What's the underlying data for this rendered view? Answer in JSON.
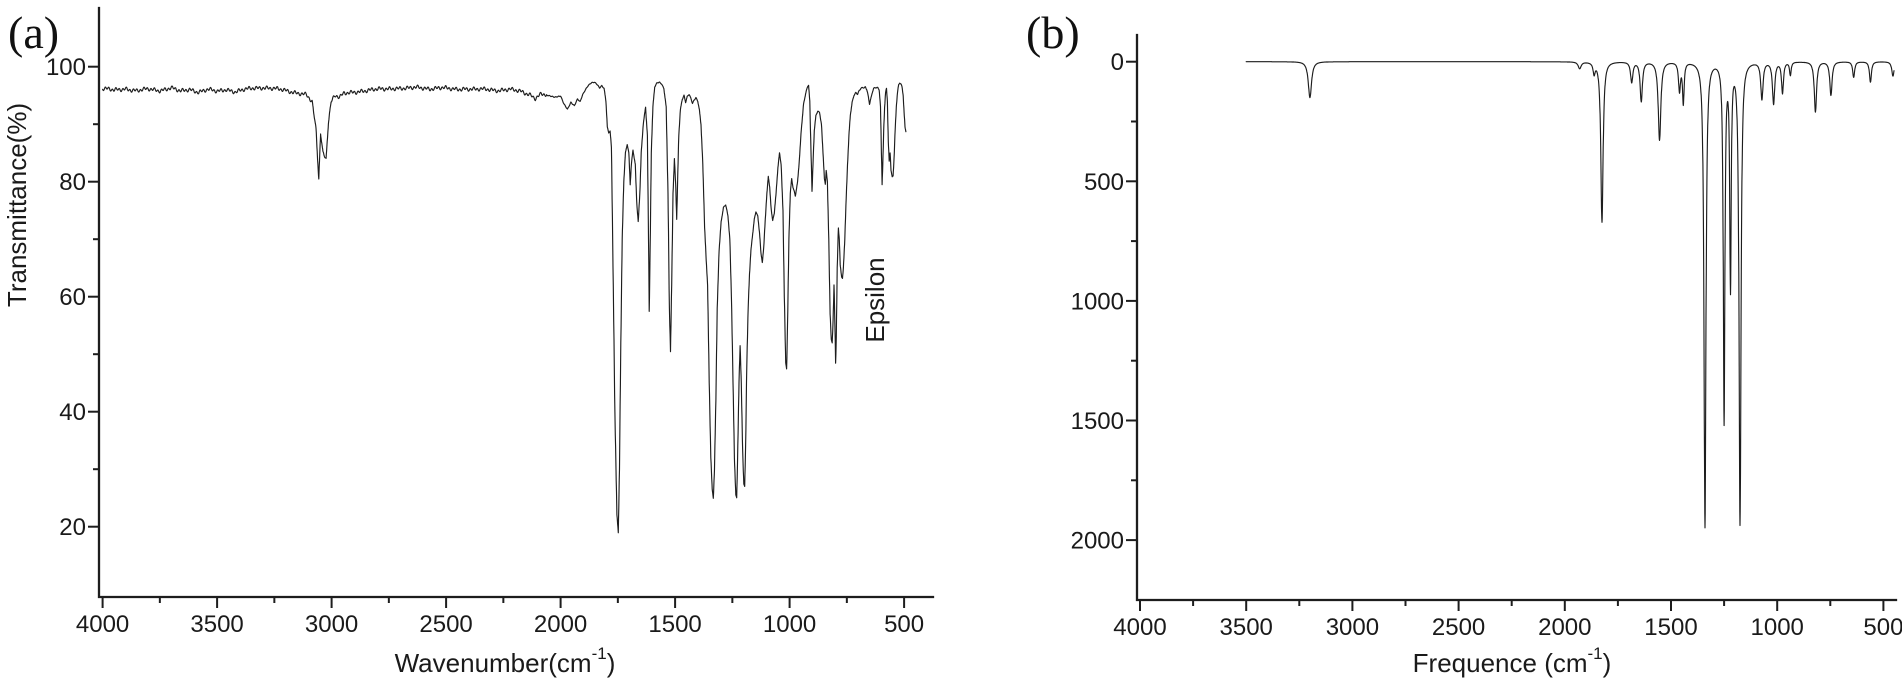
{
  "figure": {
    "description_visible_text_only": true,
    "line_color": "#1d1d1d",
    "background_color": "#ffffff"
  },
  "chart_data": [
    {
      "type": "line",
      "tag": "(a)",
      "xlabel": "Wavenumber(cm⁻¹)",
      "xlabel_parts": {
        "pre": "Wavenumber(cm",
        "sup": "-1",
        "post": ")"
      },
      "ylabel": "Transmittance(%)",
      "x_ticks": [
        4000,
        3500,
        3000,
        2500,
        2000,
        1500,
        1000,
        500
      ],
      "x_minor_ticks": [
        3750,
        3250,
        2750,
        2250,
        1750,
        1250,
        750
      ],
      "y_ticks": [
        100,
        80,
        60,
        40,
        20
      ],
      "y_minor_ticks": [
        90,
        70,
        50,
        30
      ],
      "x_axis_reversed": true,
      "xlim": [
        4000,
        370
      ],
      "ylim": [
        8,
        110
      ],
      "legend": "none",
      "grid": false,
      "curve_points_format": "[wavenumber_cm-1, transmittance_pct]",
      "curve_points": [
        [
          4000,
          96.2
        ],
        [
          3950,
          95.9
        ],
        [
          3900,
          96.2
        ],
        [
          3850,
          95.8
        ],
        [
          3800,
          96.1
        ],
        [
          3750,
          95.9
        ],
        [
          3700,
          96.3
        ],
        [
          3660,
          95.7
        ],
        [
          3620,
          96.1
        ],
        [
          3580,
          95.6
        ],
        [
          3540,
          96.0
        ],
        [
          3500,
          95.7
        ],
        [
          3460,
          96.1
        ],
        [
          3420,
          95.6
        ],
        [
          3380,
          96.0
        ],
        [
          3340,
          96.3
        ],
        [
          3300,
          96.4
        ],
        [
          3260,
          96.2
        ],
        [
          3220,
          96.0
        ],
        [
          3180,
          95.7
        ],
        [
          3140,
          95.4
        ],
        [
          3110,
          95.1
        ],
        [
          3085,
          93.8
        ],
        [
          3068,
          89.0
        ],
        [
          3056,
          80.5
        ],
        [
          3048,
          88.5
        ],
        [
          3038,
          85.0
        ],
        [
          3024,
          84.0
        ],
        [
          3014,
          90.5
        ],
        [
          3002,
          94.0
        ],
        [
          2985,
          95.0
        ],
        [
          2965,
          94.7
        ],
        [
          2945,
          95.3
        ],
        [
          2910,
          95.5
        ],
        [
          2870,
          95.8
        ],
        [
          2820,
          96.0
        ],
        [
          2770,
          96.1
        ],
        [
          2720,
          96.3
        ],
        [
          2670,
          96.2
        ],
        [
          2620,
          96.4
        ],
        [
          2570,
          96.2
        ],
        [
          2520,
          96.3
        ],
        [
          2470,
          96.1
        ],
        [
          2420,
          96.2
        ],
        [
          2370,
          96.0
        ],
        [
          2320,
          96.1
        ],
        [
          2270,
          95.9
        ],
        [
          2220,
          96.0
        ],
        [
          2170,
          95.7
        ],
        [
          2130,
          95.1
        ],
        [
          2110,
          94.5
        ],
        [
          2085,
          95.2
        ],
        [
          2055,
          95.0
        ],
        [
          2025,
          94.7
        ],
        [
          2000,
          94.9
        ],
        [
          1985,
          93.5
        ],
        [
          1970,
          92.6
        ],
        [
          1955,
          93.8
        ],
        [
          1940,
          93.2
        ],
        [
          1926,
          94.4
        ],
        [
          1915,
          93.9
        ],
        [
          1904,
          95.1
        ],
        [
          1893,
          95.9
        ],
        [
          1880,
          96.7
        ],
        [
          1866,
          97.2
        ],
        [
          1852,
          97.3
        ],
        [
          1840,
          96.9
        ],
        [
          1830,
          96.3
        ],
        [
          1820,
          96.7
        ],
        [
          1810,
          96.2
        ],
        [
          1802,
          94.0
        ],
        [
          1796,
          89.5
        ],
        [
          1790,
          88.5
        ],
        [
          1784,
          88.8
        ],
        [
          1778,
          86.0
        ],
        [
          1771,
          65.0
        ],
        [
          1763,
          40.0
        ],
        [
          1754,
          22.0
        ],
        [
          1748,
          19.0
        ],
        [
          1743,
          30.0
        ],
        [
          1737,
          52.0
        ],
        [
          1731,
          70.0
        ],
        [
          1724,
          80.0
        ],
        [
          1717,
          85.0
        ],
        [
          1709,
          86.5
        ],
        [
          1702,
          85.0
        ],
        [
          1696,
          79.5
        ],
        [
          1691,
          83.0
        ],
        [
          1684,
          85.5
        ],
        [
          1674,
          83.0
        ],
        [
          1667,
          76.0
        ],
        [
          1661,
          73.0
        ],
        [
          1654,
          78.0
        ],
        [
          1648,
          85.0
        ],
        [
          1639,
          90.0
        ],
        [
          1629,
          93.0
        ],
        [
          1621,
          88.0
        ],
        [
          1616,
          70.0
        ],
        [
          1613,
          57.5
        ],
        [
          1609,
          68.0
        ],
        [
          1604,
          85.0
        ],
        [
          1597,
          93.0
        ],
        [
          1589,
          96.5
        ],
        [
          1579,
          97.2
        ],
        [
          1569,
          97.3
        ],
        [
          1559,
          97.0
        ],
        [
          1549,
          96.2
        ],
        [
          1539,
          93.0
        ],
        [
          1531,
          78.0
        ],
        [
          1525,
          58.0
        ],
        [
          1520,
          50.5
        ],
        [
          1515,
          62.0
        ],
        [
          1509,
          78.0
        ],
        [
          1503,
          84.0
        ],
        [
          1497,
          79.0
        ],
        [
          1493,
          73.5
        ],
        [
          1489,
          80.0
        ],
        [
          1484,
          88.0
        ],
        [
          1477,
          92.5
        ],
        [
          1469,
          94.3
        ],
        [
          1461,
          95.0
        ],
        [
          1454,
          93.8
        ],
        [
          1447,
          94.8
        ],
        [
          1439,
          95.2
        ],
        [
          1431,
          94.5
        ],
        [
          1424,
          93.6
        ],
        [
          1417,
          94.2
        ],
        [
          1409,
          94.6
        ],
        [
          1401,
          94.0
        ],
        [
          1394,
          92.5
        ],
        [
          1387,
          90.0
        ],
        [
          1379,
          83.0
        ],
        [
          1371,
          72.0
        ],
        [
          1365,
          67.0
        ],
        [
          1358,
          62.0
        ],
        [
          1351,
          45.0
        ],
        [
          1344,
          32.0
        ],
        [
          1338,
          26.5
        ],
        [
          1333,
          25.0
        ],
        [
          1328,
          30.0
        ],
        [
          1322,
          42.0
        ],
        [
          1316,
          58.0
        ],
        [
          1308,
          68.0
        ],
        [
          1299,
          73.0
        ],
        [
          1289,
          75.5
        ],
        [
          1279,
          76.0
        ],
        [
          1269,
          74.0
        ],
        [
          1261,
          70.0
        ],
        [
          1254,
          60.0
        ],
        [
          1247,
          45.0
        ],
        [
          1241,
          32.0
        ],
        [
          1235,
          25.5
        ],
        [
          1231,
          25.0
        ],
        [
          1227,
          32.0
        ],
        [
          1221,
          45.0
        ],
        [
          1216,
          51.5
        ],
        [
          1211,
          45.0
        ],
        [
          1205,
          33.0
        ],
        [
          1200,
          27.5
        ],
        [
          1196,
          27.0
        ],
        [
          1192,
          34.0
        ],
        [
          1187,
          48.0
        ],
        [
          1181,
          58.0
        ],
        [
          1175,
          64.0
        ],
        [
          1169,
          68.0
        ],
        [
          1161,
          71.0
        ],
        [
          1154,
          73.5
        ],
        [
          1147,
          74.8
        ],
        [
          1139,
          74.0
        ],
        [
          1131,
          71.0
        ],
        [
          1125,
          67.5
        ],
        [
          1119,
          66.0
        ],
        [
          1113,
          68.5
        ],
        [
          1107,
          73.0
        ],
        [
          1099,
          78.0
        ],
        [
          1093,
          81.0
        ],
        [
          1087,
          79.0
        ],
        [
          1081,
          75.5
        ],
        [
          1074,
          73.2
        ],
        [
          1067,
          74.5
        ],
        [
          1059,
          78.0
        ],
        [
          1051,
          82.5
        ],
        [
          1044,
          85.0
        ],
        [
          1037,
          83.0
        ],
        [
          1029,
          75.0
        ],
        [
          1023,
          60.0
        ],
        [
          1017,
          48.5
        ],
        [
          1013,
          47.5
        ],
        [
          1009,
          55.0
        ],
        [
          1003,
          70.0
        ],
        [
          997,
          78.0
        ],
        [
          991,
          80.5
        ],
        [
          985,
          79.0
        ],
        [
          979,
          78.2
        ],
        [
          975,
          77.5
        ],
        [
          971,
          78.5
        ],
        [
          965,
          80.0
        ],
        [
          957,
          84.0
        ],
        [
          949,
          89.0
        ],
        [
          939,
          93.5
        ],
        [
          929,
          95.5
        ],
        [
          921,
          96.6
        ],
        [
          917,
          96.8
        ],
        [
          912,
          94.0
        ],
        [
          907,
          86.0
        ],
        [
          902,
          78.3
        ],
        [
          897,
          84.0
        ],
        [
          892,
          89.0
        ],
        [
          885,
          91.5
        ],
        [
          877,
          92.3
        ],
        [
          869,
          92.0
        ],
        [
          861,
          90.0
        ],
        [
          854,
          85.0
        ],
        [
          848,
          80.5
        ],
        [
          844,
          79.5
        ],
        [
          840,
          82.0
        ],
        [
          835,
          80.0
        ],
        [
          829,
          70.0
        ],
        [
          823,
          57.0
        ],
        [
          818,
          52.5
        ],
        [
          814,
          52.0
        ],
        [
          810,
          56.0
        ],
        [
          806,
          62.0
        ],
        [
          802,
          55.0
        ],
        [
          799,
          48.5
        ],
        [
          796,
          53.0
        ],
        [
          792,
          65.0
        ],
        [
          787,
          72.0
        ],
        [
          783,
          70.0
        ],
        [
          779,
          65.5
        ],
        [
          773,
          63.5
        ],
        [
          769,
          63.2
        ],
        [
          765,
          65.0
        ],
        [
          759,
          70.0
        ],
        [
          753,
          77.0
        ],
        [
          747,
          83.0
        ],
        [
          741,
          88.0
        ],
        [
          735,
          91.5
        ],
        [
          727,
          93.8
        ],
        [
          719,
          95.0
        ],
        [
          711,
          95.5
        ],
        [
          703,
          95.2
        ],
        [
          697,
          95.8
        ],
        [
          689,
          96.2
        ],
        [
          682,
          96.4
        ],
        [
          675,
          96.3
        ],
        [
          669,
          96.5
        ],
        [
          663,
          96.0
        ],
        [
          657,
          95.0
        ],
        [
          651,
          93.5
        ],
        [
          645,
          94.5
        ],
        [
          639,
          95.5
        ],
        [
          633,
          96.2
        ],
        [
          627,
          96.4
        ],
        [
          621,
          96.3
        ],
        [
          615,
          96.4
        ],
        [
          609,
          96.0
        ],
        [
          603,
          93.0
        ],
        [
          599,
          85.0
        ],
        [
          596,
          79.5
        ],
        [
          593,
          83.0
        ],
        [
          589,
          89.0
        ],
        [
          585,
          93.0
        ],
        [
          581,
          95.5
        ],
        [
          577,
          96.2
        ],
        [
          573,
          94.0
        ],
        [
          569,
          87.0
        ],
        [
          565,
          83.5
        ],
        [
          561,
          85.0
        ],
        [
          557,
          82.0
        ],
        [
          552,
          80.8
        ],
        [
          548,
          81.0
        ],
        [
          544,
          84.0
        ],
        [
          539,
          89.0
        ],
        [
          534,
          93.0
        ],
        [
          529,
          95.5
        ],
        [
          524,
          96.8
        ],
        [
          519,
          97.2
        ],
        [
          514,
          97.0
        ],
        [
          509,
          96.5
        ],
        [
          504,
          95.0
        ],
        [
          500,
          92.0
        ],
        [
          496,
          89.5
        ],
        [
          492,
          88.7
        ]
      ]
    },
    {
      "type": "line",
      "tag": "(b)",
      "xlabel": "Frequence (cm⁻¹)",
      "xlabel_parts": {
        "pre": "Frequence (cm",
        "sup": "-1",
        "post": ")"
      },
      "ylabel": "Epsilon",
      "x_ticks": [
        4000,
        3500,
        3000,
        2500,
        2000,
        1500,
        1000,
        500
      ],
      "x_minor_ticks": [
        3750,
        3250,
        2750,
        2250,
        1750,
        1250,
        750
      ],
      "y_ticks": [
        0,
        500,
        1000,
        1500,
        2000
      ],
      "y_minor_ticks": [
        250,
        750,
        1250,
        1750
      ],
      "x_axis_reversed": true,
      "y_axis_inverted": true,
      "xlim": [
        4000,
        440
      ],
      "ylim": [
        -110,
        2250
      ],
      "legend": "none",
      "grid": false,
      "baseline_epsilon": 0,
      "curve_x_range": [
        3500,
        450
      ],
      "peaks_format": "downward peaks from epsilon=0 baseline",
      "peaks": [
        {
          "wn": 3200,
          "epsilon": 150,
          "width": 10
        },
        {
          "wn": 1930,
          "epsilon": 28,
          "width": 9
        },
        {
          "wn": 1862,
          "epsilon": 45,
          "width": 6
        },
        {
          "wn": 1825,
          "epsilon": 670,
          "width": 7
        },
        {
          "wn": 1685,
          "epsilon": 85,
          "width": 7
        },
        {
          "wn": 1640,
          "epsilon": 165,
          "width": 7
        },
        {
          "wn": 1554,
          "epsilon": 327,
          "width": 8
        },
        {
          "wn": 1460,
          "epsilon": 120,
          "width": 6
        },
        {
          "wn": 1442,
          "epsilon": 170,
          "width": 5
        },
        {
          "wn": 1340,
          "epsilon": 1945,
          "width": 6
        },
        {
          "wn": 1250,
          "epsilon": 1500,
          "width": 5
        },
        {
          "wn": 1220,
          "epsilon": 930,
          "width": 4.5
        },
        {
          "wn": 1175,
          "epsilon": 1930,
          "width": 6
        },
        {
          "wn": 1072,
          "epsilon": 155,
          "width": 7
        },
        {
          "wn": 1017,
          "epsilon": 175,
          "width": 7
        },
        {
          "wn": 975,
          "epsilon": 130,
          "width": 6
        },
        {
          "wn": 938,
          "epsilon": 55,
          "width": 5
        },
        {
          "wn": 820,
          "epsilon": 210,
          "width": 7
        },
        {
          "wn": 747,
          "epsilon": 140,
          "width": 7
        },
        {
          "wn": 640,
          "epsilon": 65,
          "width": 6
        },
        {
          "wn": 561,
          "epsilon": 85,
          "width": 6
        },
        {
          "wn": 455,
          "epsilon": 60,
          "width": 7
        }
      ]
    }
  ]
}
